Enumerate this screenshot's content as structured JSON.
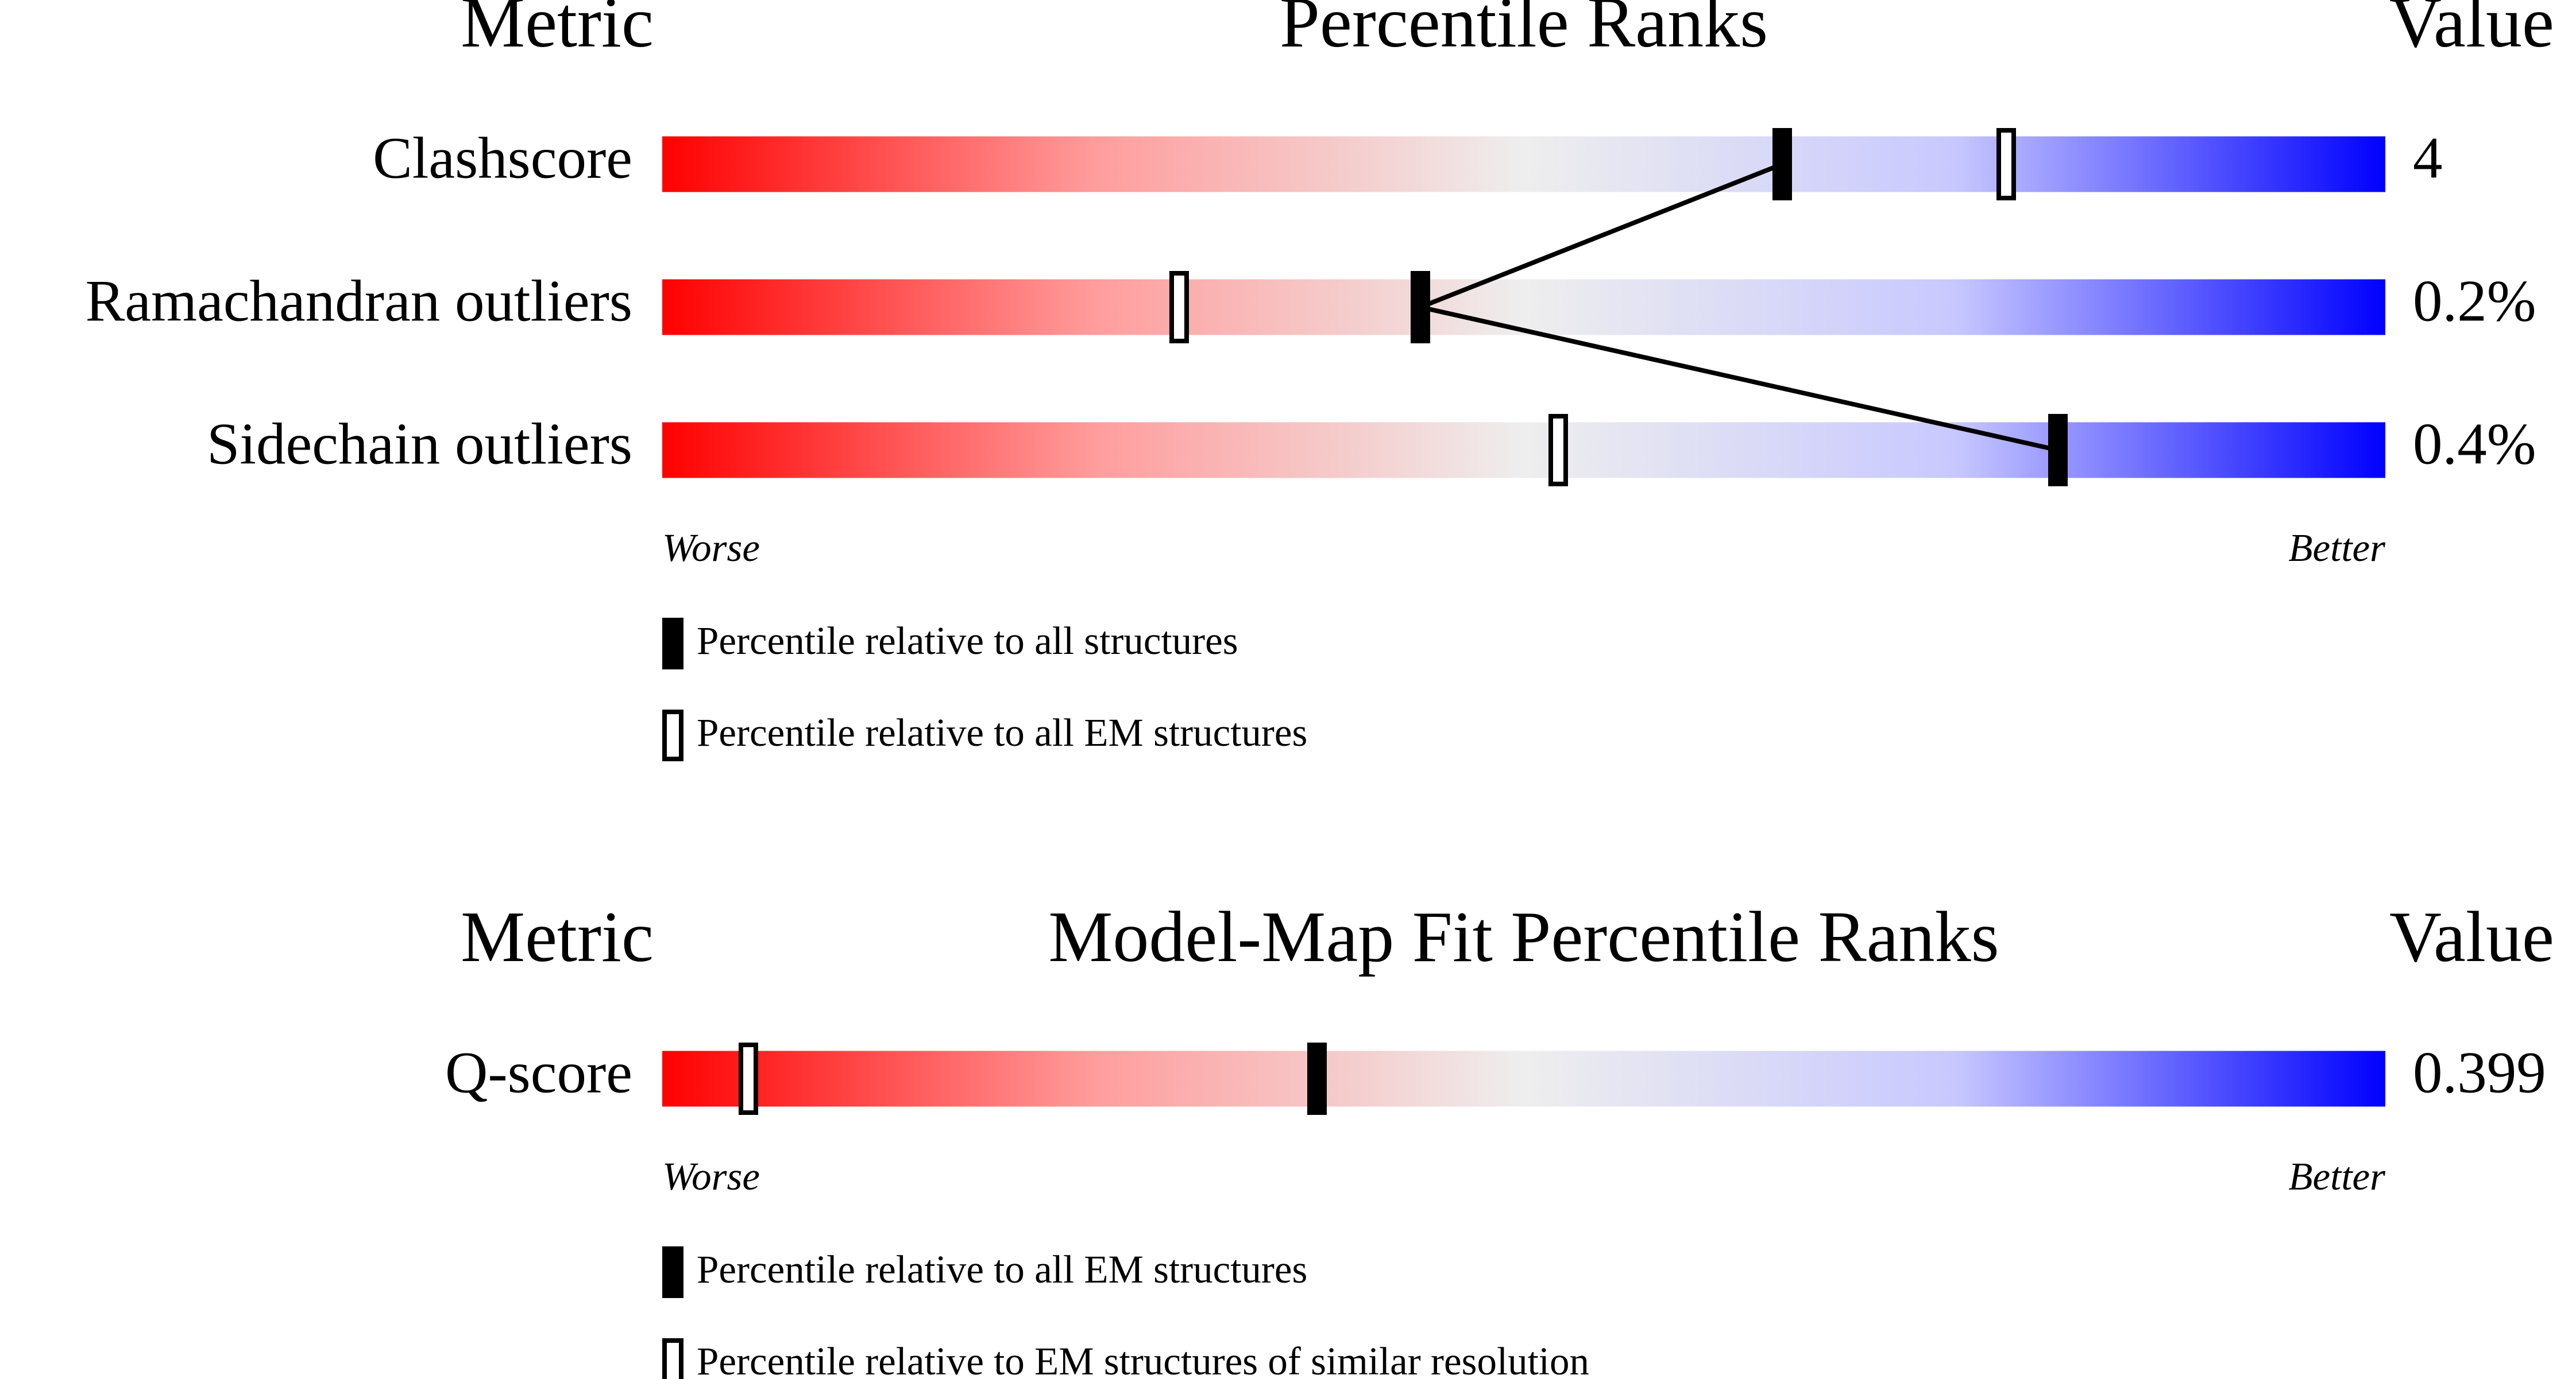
{
  "panels": [
    {
      "header": {
        "metric": "Metric",
        "title": "Percentile Ranks",
        "value": "Value"
      },
      "xlim": [
        0,
        100
      ],
      "rows": [
        {
          "metric": "Clashscore",
          "value": "4",
          "percentile_filled": 65,
          "percentile_open": 78
        },
        {
          "metric": "Ramachandran outliers",
          "value": "0.2%",
          "percentile_filled": 44,
          "percentile_open": 30
        },
        {
          "metric": "Sidechain outliers",
          "value": "0.4%",
          "percentile_filled": 81,
          "percentile_open": 52
        }
      ],
      "worse": "Worse",
      "better": "Better",
      "legend": {
        "filled": "Percentile relative to all structures",
        "open": "Percentile relative to all EM structures"
      }
    },
    {
      "header": {
        "metric": "Metric",
        "title": "Model-Map Fit Percentile Ranks",
        "value": "Value"
      },
      "xlim": [
        0,
        100
      ],
      "rows": [
        {
          "metric": "Q-score",
          "value": "0.399",
          "percentile_filled": 38,
          "percentile_open": 5
        }
      ],
      "worse": "Worse",
      "better": "Better",
      "legend": {
        "filled": "Percentile relative to all EM structures",
        "open": "Percentile relative to EM structures of similar resolution"
      }
    }
  ]
}
